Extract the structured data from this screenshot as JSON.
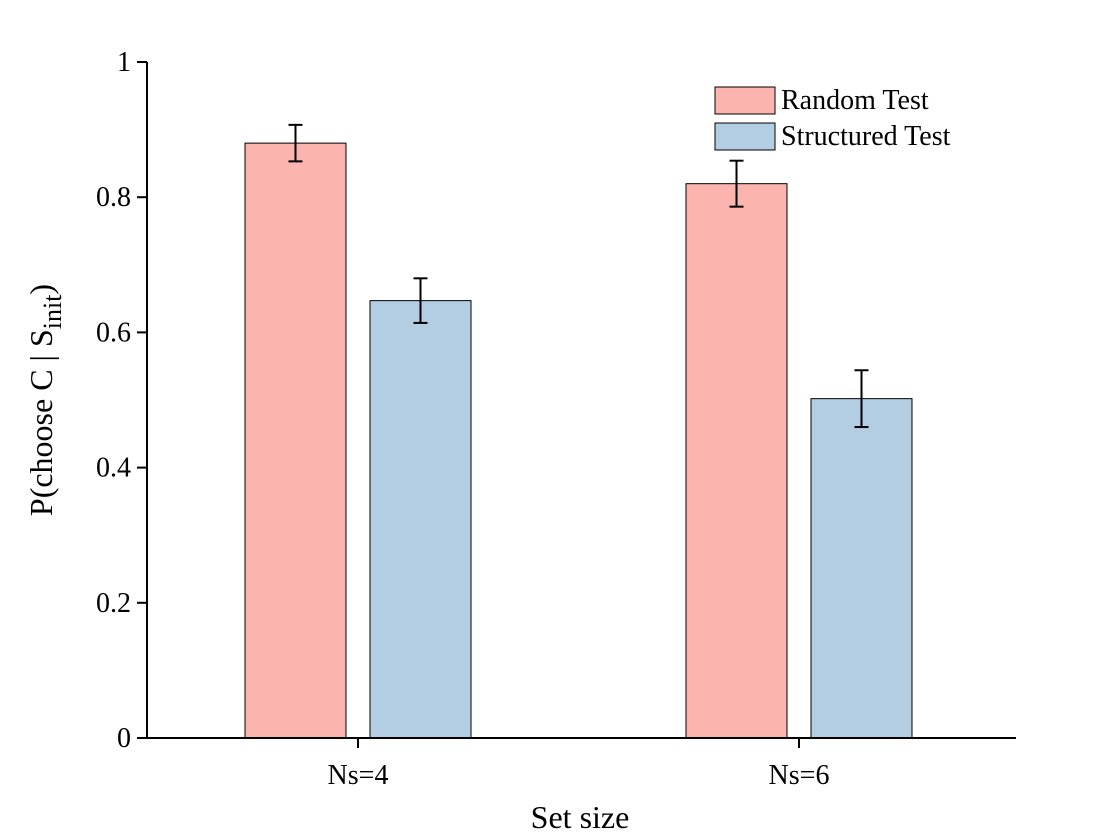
{
  "chart_data": {
    "type": "bar",
    "categories": [
      "Ns=4",
      "Ns=6"
    ],
    "series": [
      {
        "name": "Random Test",
        "values": [
          0.88,
          0.82
        ],
        "errors": [
          0.027,
          0.034
        ],
        "color": "#fbb4ae"
      },
      {
        "name": "Structured Test",
        "values": [
          0.647,
          0.502
        ],
        "errors": [
          0.033,
          0.042
        ],
        "color": "#b3cde3"
      }
    ],
    "xlabel": "Set size",
    "ylabel": {
      "main": "P(choose C | S",
      "sub": "init",
      "close": ")"
    },
    "ylim": [
      0,
      1
    ],
    "yticks": [
      "0",
      "0.2",
      "0.4",
      "0.6",
      "0.8",
      "1"
    ],
    "ytick_values": [
      0,
      0.2,
      0.4,
      0.6,
      0.8,
      1
    ],
    "legend_position": "top-right",
    "grid": false
  }
}
